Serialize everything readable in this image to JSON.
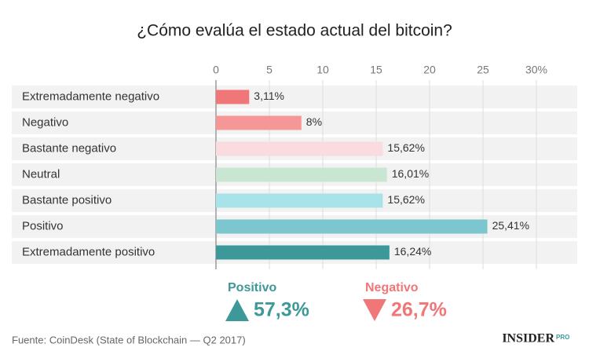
{
  "chart_data": {
    "type": "bar",
    "orientation": "horizontal",
    "title": "¿Cómo evalúa el estado actual del bitcoin?",
    "categories": [
      "Extremadamente negativo",
      "Negativo",
      "Bastante negativo",
      "Neutral",
      "Bastante positivo",
      "Positivo",
      "Extremadamente positivo"
    ],
    "values": [
      3.11,
      8,
      15.62,
      16.01,
      15.62,
      25.41,
      16.24
    ],
    "value_labels": [
      "3,11%",
      "8%",
      "15,62%",
      "16,01%",
      "15,62%",
      "25,41%",
      "16,24%"
    ],
    "colors": [
      "#f07677",
      "#f59697",
      "#fadbe0",
      "#c8e6d2",
      "#a8e3ea",
      "#7cc7cf",
      "#3d9899"
    ],
    "xlim": [
      0,
      30
    ],
    "xticks": [
      0,
      5,
      10,
      15,
      20,
      25,
      {
        "value": 30,
        "label": "30%"
      }
    ],
    "grid": true
  },
  "summary": [
    {
      "label": "Positivo",
      "value": "57,3%",
      "color": "#3d9899"
    },
    {
      "label": "Negativo",
      "value": "26,7%",
      "color": "#f07677"
    }
  ],
  "source": "Fuente: CoinDesk (State of Blockchain — Q2 2017)",
  "brand": {
    "name": "INSIDER",
    "suffix": "PRO"
  }
}
